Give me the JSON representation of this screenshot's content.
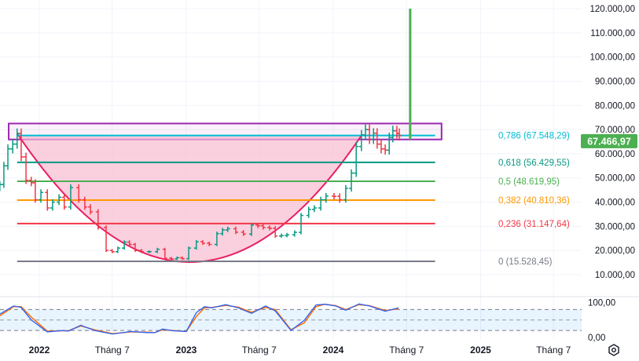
{
  "chart_data": {
    "type": "ohlc-bar",
    "price_axis": {
      "range": [
        6000,
        122000
      ],
      "ticks": [
        {
          "value": 120000,
          "label": "120.000,00"
        },
        {
          "value": 110000,
          "label": "110.000,00"
        },
        {
          "value": 100000,
          "label": "100.000,00"
        },
        {
          "value": 90000,
          "label": "90.000,00"
        },
        {
          "value": 80000,
          "label": "80.000,00"
        },
        {
          "value": 70000,
          "label": "70.000,00"
        },
        {
          "value": 60000,
          "label": "60.000,00"
        },
        {
          "value": 50000,
          "label": "50.000,00"
        },
        {
          "value": 40000,
          "label": "40.000,00"
        },
        {
          "value": 30000,
          "label": "30.000,00"
        },
        {
          "value": 20000,
          "label": "20.000,00"
        },
        {
          "value": 10000,
          "label": "10.000,00"
        }
      ]
    },
    "time_axis": {
      "ticks": [
        {
          "date": "2022-01-01",
          "label": "2022",
          "bold": true
        },
        {
          "date": "2022-07-01",
          "label": "Tháng 7",
          "bold": false
        },
        {
          "date": "2023-01-01",
          "label": "2023",
          "bold": true
        },
        {
          "date": "2023-07-01",
          "label": "Tháng 7",
          "bold": false
        },
        {
          "date": "2024-01-01",
          "label": "2024",
          "bold": true
        },
        {
          "date": "2024-07-01",
          "label": "Tháng 7",
          "bold": false
        },
        {
          "date": "2025-01-01",
          "label": "2025",
          "bold": true
        },
        {
          "date": "2025-07-01",
          "label": "Tháng 7",
          "bold": false
        }
      ]
    },
    "grid": true,
    "last_price": {
      "value": 67466.97,
      "label": "67.466,97",
      "color": "#4caf50"
    },
    "colors": {
      "up": "#089981",
      "down": "#f23645"
    },
    "series": [
      {
        "date": "2021-09-25",
        "close": 47300
      },
      {
        "date": "2021-10-05",
        "close": 55000
      },
      {
        "date": "2021-10-15",
        "close": 62000
      },
      {
        "date": "2021-10-27",
        "close": 64000
      },
      {
        "date": "2021-11-07",
        "close": 68400
      },
      {
        "date": "2021-11-17",
        "close": 58700
      },
      {
        "date": "2021-11-29",
        "close": 49000
      },
      {
        "date": "2021-12-12",
        "close": 48000
      },
      {
        "date": "2021-12-22",
        "close": 41000
      },
      {
        "date": "2022-01-05",
        "close": 44000
      },
      {
        "date": "2022-01-21",
        "close": 37600
      },
      {
        "date": "2022-02-03",
        "close": 40000
      },
      {
        "date": "2022-02-19",
        "close": 42000
      },
      {
        "date": "2022-03-04",
        "close": 38000
      },
      {
        "date": "2022-03-20",
        "close": 46000
      },
      {
        "date": "2022-04-09",
        "close": 41000
      },
      {
        "date": "2022-04-24",
        "close": 38000
      },
      {
        "date": "2022-05-08",
        "close": 36000
      },
      {
        "date": "2022-05-27",
        "close": 29500
      },
      {
        "date": "2022-06-16",
        "close": 20000
      },
      {
        "date": "2022-07-01",
        "close": 19500
      },
      {
        "date": "2022-07-15",
        "close": 21000
      },
      {
        "date": "2022-07-31",
        "close": 23500
      },
      {
        "date": "2022-08-13",
        "close": 22500
      },
      {
        "date": "2022-08-27",
        "close": 20000
      },
      {
        "date": "2022-09-12",
        "close": 19500
      },
      {
        "date": "2022-10-01",
        "close": 19500
      },
      {
        "date": "2022-10-21",
        "close": 20500
      },
      {
        "date": "2022-11-09",
        "close": 16800
      },
      {
        "date": "2022-11-25",
        "close": 16500
      },
      {
        "date": "2022-12-09",
        "close": 17000
      },
      {
        "date": "2022-12-22",
        "close": 16600
      },
      {
        "date": "2023-01-07",
        "close": 21000
      },
      {
        "date": "2023-01-26",
        "close": 23600
      },
      {
        "date": "2023-02-11",
        "close": 23000
      },
      {
        "date": "2023-02-27",
        "close": 22500
      },
      {
        "date": "2023-03-18",
        "close": 27000
      },
      {
        "date": "2023-04-01",
        "close": 28500
      },
      {
        "date": "2023-04-14",
        "close": 29000
      },
      {
        "date": "2023-05-04",
        "close": 27600
      },
      {
        "date": "2023-05-23",
        "close": 26800
      },
      {
        "date": "2023-06-12",
        "close": 30500
      },
      {
        "date": "2023-06-28",
        "close": 30200
      },
      {
        "date": "2023-07-11",
        "close": 29500
      },
      {
        "date": "2023-07-27",
        "close": 29200
      },
      {
        "date": "2023-08-10",
        "close": 26000
      },
      {
        "date": "2023-08-25",
        "close": 26200
      },
      {
        "date": "2023-09-08",
        "close": 26500
      },
      {
        "date": "2023-09-27",
        "close": 27500
      },
      {
        "date": "2023-10-13",
        "close": 34500
      },
      {
        "date": "2023-11-01",
        "close": 37000
      },
      {
        "date": "2023-11-15",
        "close": 37600
      },
      {
        "date": "2023-12-01",
        "close": 41000
      },
      {
        "date": "2023-12-14",
        "close": 42500
      },
      {
        "date": "2024-01-03",
        "close": 42400
      },
      {
        "date": "2024-01-17",
        "close": 41000
      },
      {
        "date": "2024-02-01",
        "close": 45700
      },
      {
        "date": "2024-02-15",
        "close": 52000
      },
      {
        "date": "2024-02-27",
        "close": 63000
      },
      {
        "date": "2024-03-11",
        "close": 67800
      },
      {
        "date": "2024-03-21",
        "close": 70000
      },
      {
        "date": "2024-03-31",
        "close": 66000
      },
      {
        "date": "2024-04-10",
        "close": 68500
      },
      {
        "date": "2024-04-19",
        "close": 64000
      },
      {
        "date": "2024-04-29",
        "close": 62000
      },
      {
        "date": "2024-05-09",
        "close": 61500
      },
      {
        "date": "2024-05-19",
        "close": 66700
      },
      {
        "date": "2024-05-28",
        "close": 69500
      },
      {
        "date": "2024-06-07",
        "close": 68400
      },
      {
        "date": "2024-06-13",
        "close": 67466.97
      }
    ],
    "fibonacci": {
      "start_date": "2021-11-07",
      "end_date": "2024-09-10",
      "levels": [
        {
          "ratio": "0,786",
          "value": 67548.29,
          "label": "0,786 (67.548,29)",
          "color": "#00bcd4"
        },
        {
          "ratio": "0,618",
          "value": 56429.55,
          "label": "0,618 (56.429,55)",
          "color": "#089981"
        },
        {
          "ratio": "0,5",
          "value": 48619.95,
          "label": "0,5 (48.619,95)",
          "color": "#4caf50"
        },
        {
          "ratio": "0,382",
          "value": 40810.36,
          "label": "0,382 (40.810,36)",
          "color": "#ff9800"
        },
        {
          "ratio": "0,236",
          "value": 31147.64,
          "label": "0,236 (31.147,64)",
          "color": "#f23645"
        },
        {
          "ratio": "0",
          "value": 15528.45,
          "label": "0 (15.528,45)",
          "color": "#787b86"
        }
      ]
    },
    "drawings": {
      "rectangle": {
        "start_date": "2021-10-17",
        "end_date": "2024-09-26",
        "top": 72500,
        "bottom": 65900,
        "color": "#9c27b0"
      },
      "cup_arc": {
        "start_date": "2021-11-07",
        "start_value": 68400,
        "end_date": "2024-03-11",
        "end_value": 67548.29,
        "bottom_value": 15200,
        "color": "#e91e63",
        "fill": "#f8bbd0"
      },
      "vertical_line": {
        "date": "2024-07-10",
        "from": 65900,
        "to": 120000,
        "color": "#4caf50"
      }
    },
    "oscillator": {
      "type": "line",
      "range": [
        0,
        100
      ],
      "bands": [
        80,
        50,
        20
      ],
      "ticks": [
        {
          "value": 100,
          "label": "100,00"
        },
        {
          "value": 0,
          "label": "0,00"
        }
      ],
      "k_color": "#2962ff",
      "d_color": "#ff6d00",
      "k": [
        {
          "date": "2021-09-25",
          "v": 67
        },
        {
          "date": "2021-10-29",
          "v": 90
        },
        {
          "date": "2021-11-17",
          "v": 86
        },
        {
          "date": "2021-12-12",
          "v": 50
        },
        {
          "date": "2022-01-21",
          "v": 16
        },
        {
          "date": "2022-03-01",
          "v": 20
        },
        {
          "date": "2022-03-14",
          "v": 18
        },
        {
          "date": "2022-04-14",
          "v": 35
        },
        {
          "date": "2022-05-18",
          "v": 20
        },
        {
          "date": "2022-07-02",
          "v": 10
        },
        {
          "date": "2022-08-17",
          "v": 17
        },
        {
          "date": "2022-09-25",
          "v": 14
        },
        {
          "date": "2022-10-15",
          "v": 14
        },
        {
          "date": "2022-11-03",
          "v": 24
        },
        {
          "date": "2022-11-29",
          "v": 19
        },
        {
          "date": "2023-01-01",
          "v": 17
        },
        {
          "date": "2023-01-26",
          "v": 71
        },
        {
          "date": "2023-02-15",
          "v": 88
        },
        {
          "date": "2023-03-06",
          "v": 85
        },
        {
          "date": "2023-04-09",
          "v": 94
        },
        {
          "date": "2023-05-10",
          "v": 85
        },
        {
          "date": "2023-06-12",
          "v": 69
        },
        {
          "date": "2023-07-17",
          "v": 90
        },
        {
          "date": "2023-08-10",
          "v": 76
        },
        {
          "date": "2023-09-18",
          "v": 20
        },
        {
          "date": "2023-10-21",
          "v": 49
        },
        {
          "date": "2023-11-19",
          "v": 93
        },
        {
          "date": "2023-12-11",
          "v": 95
        },
        {
          "date": "2024-01-07",
          "v": 90
        },
        {
          "date": "2024-02-01",
          "v": 78
        },
        {
          "date": "2024-03-05",
          "v": 96
        },
        {
          "date": "2024-03-31",
          "v": 90
        },
        {
          "date": "2024-05-09",
          "v": 75
        },
        {
          "date": "2024-06-11",
          "v": 85
        }
      ],
      "d": [
        {
          "date": "2021-09-25",
          "v": 62
        },
        {
          "date": "2021-10-29",
          "v": 88
        },
        {
          "date": "2021-11-17",
          "v": 88
        },
        {
          "date": "2021-12-12",
          "v": 58
        },
        {
          "date": "2022-01-21",
          "v": 18
        },
        {
          "date": "2022-03-01",
          "v": 19
        },
        {
          "date": "2022-03-14",
          "v": 19
        },
        {
          "date": "2022-04-14",
          "v": 33
        },
        {
          "date": "2022-05-18",
          "v": 22
        },
        {
          "date": "2022-07-02",
          "v": 11
        },
        {
          "date": "2022-08-17",
          "v": 16
        },
        {
          "date": "2022-09-25",
          "v": 15
        },
        {
          "date": "2022-10-15",
          "v": 14
        },
        {
          "date": "2022-11-03",
          "v": 22
        },
        {
          "date": "2022-11-29",
          "v": 20
        },
        {
          "date": "2023-01-01",
          "v": 17
        },
        {
          "date": "2023-01-26",
          "v": 60
        },
        {
          "date": "2023-02-15",
          "v": 85
        },
        {
          "date": "2023-03-06",
          "v": 86
        },
        {
          "date": "2023-04-09",
          "v": 92
        },
        {
          "date": "2023-05-10",
          "v": 87
        },
        {
          "date": "2023-06-12",
          "v": 72
        },
        {
          "date": "2023-07-17",
          "v": 86
        },
        {
          "date": "2023-08-10",
          "v": 80
        },
        {
          "date": "2023-09-18",
          "v": 22
        },
        {
          "date": "2023-10-21",
          "v": 42
        },
        {
          "date": "2023-11-19",
          "v": 88
        },
        {
          "date": "2023-12-11",
          "v": 95
        },
        {
          "date": "2024-01-07",
          "v": 91
        },
        {
          "date": "2024-02-01",
          "v": 80
        },
        {
          "date": "2024-03-05",
          "v": 94
        },
        {
          "date": "2024-03-31",
          "v": 91
        },
        {
          "date": "2024-05-09",
          "v": 77
        },
        {
          "date": "2024-06-11",
          "v": 82
        }
      ]
    }
  }
}
